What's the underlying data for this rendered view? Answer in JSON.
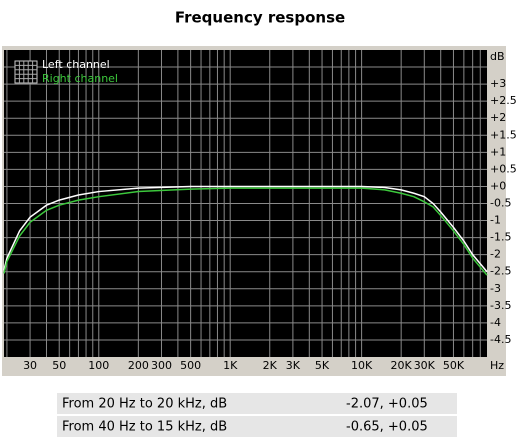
{
  "chart_data": {
    "type": "line",
    "title": "Frequency response",
    "x_label": "Hz",
    "y_label": "dB",
    "x": [
      19,
      20,
      25,
      30,
      40,
      50,
      70,
      100,
      200,
      500,
      1000,
      5000,
      10000,
      15000,
      20000,
      25000,
      30000,
      35000,
      40000,
      50000,
      60000,
      70000,
      90000
    ],
    "series": [
      {
        "name": "Left channel",
        "color": "#ffffff",
        "values": [
          -2.45,
          -2.1,
          -1.3,
          -0.9,
          -0.55,
          -0.4,
          -0.25,
          -0.15,
          -0.05,
          0,
          0,
          0,
          0,
          -0.03,
          -0.1,
          -0.2,
          -0.3,
          -0.5,
          -0.75,
          -1.2,
          -1.6,
          -2.0,
          -2.5
        ]
      },
      {
        "name": "Right channel",
        "color": "#3cc83c",
        "values": [
          -2.55,
          -2.2,
          -1.45,
          -1.05,
          -0.7,
          -0.55,
          -0.4,
          -0.3,
          -0.15,
          -0.08,
          -0.05,
          -0.05,
          -0.05,
          -0.1,
          -0.2,
          -0.3,
          -0.45,
          -0.6,
          -0.85,
          -1.3,
          -1.7,
          -2.1,
          -2.6
        ]
      }
    ],
    "xlim": [
      19,
      90000
    ],
    "xscale": "log",
    "xticks": [
      30,
      50,
      100,
      200,
      300,
      500,
      {
        "value": 1000,
        "label": "1K"
      },
      {
        "value": 2000,
        "label": "2K"
      },
      {
        "value": 3000,
        "label": "3K"
      },
      {
        "value": 5000,
        "label": "5K"
      },
      {
        "value": 10000,
        "label": "10K"
      },
      {
        "value": 20000,
        "label": "20K"
      },
      {
        "value": 30000,
        "label": "30K"
      },
      {
        "value": 50000,
        "label": "50K"
      }
    ],
    "minor_xticks": [
      20,
      40,
      60,
      70,
      80,
      90,
      400,
      600,
      700,
      800,
      900,
      4000,
      6000,
      7000,
      8000,
      9000,
      40000,
      60000,
      70000,
      80000
    ],
    "ylim": [
      -5,
      4
    ],
    "yticks": [
      {
        "value": 3,
        "label": "+3"
      },
      {
        "value": 2.5,
        "label": "+2.5"
      },
      {
        "value": 2,
        "label": "+2"
      },
      {
        "value": 1.5,
        "label": "+1.5"
      },
      {
        "value": 1,
        "label": "+1"
      },
      {
        "value": 0.5,
        "label": "+0.5"
      },
      {
        "value": 0,
        "label": "+0"
      },
      -0.5,
      -1,
      -1.5,
      -2,
      -2.5,
      -3,
      -3.5,
      -4,
      -4.5
    ],
    "minor_yticks": [
      3.5
    ],
    "grid": true,
    "legend": "upper left",
    "background": "#000000"
  },
  "table": {
    "rows": [
      [
        "From 20 Hz to 20 kHz, dB",
        "-2.07, +0.05"
      ],
      [
        "From 40 Hz to 15 kHz, dB",
        "-0.65, +0.05"
      ]
    ]
  }
}
